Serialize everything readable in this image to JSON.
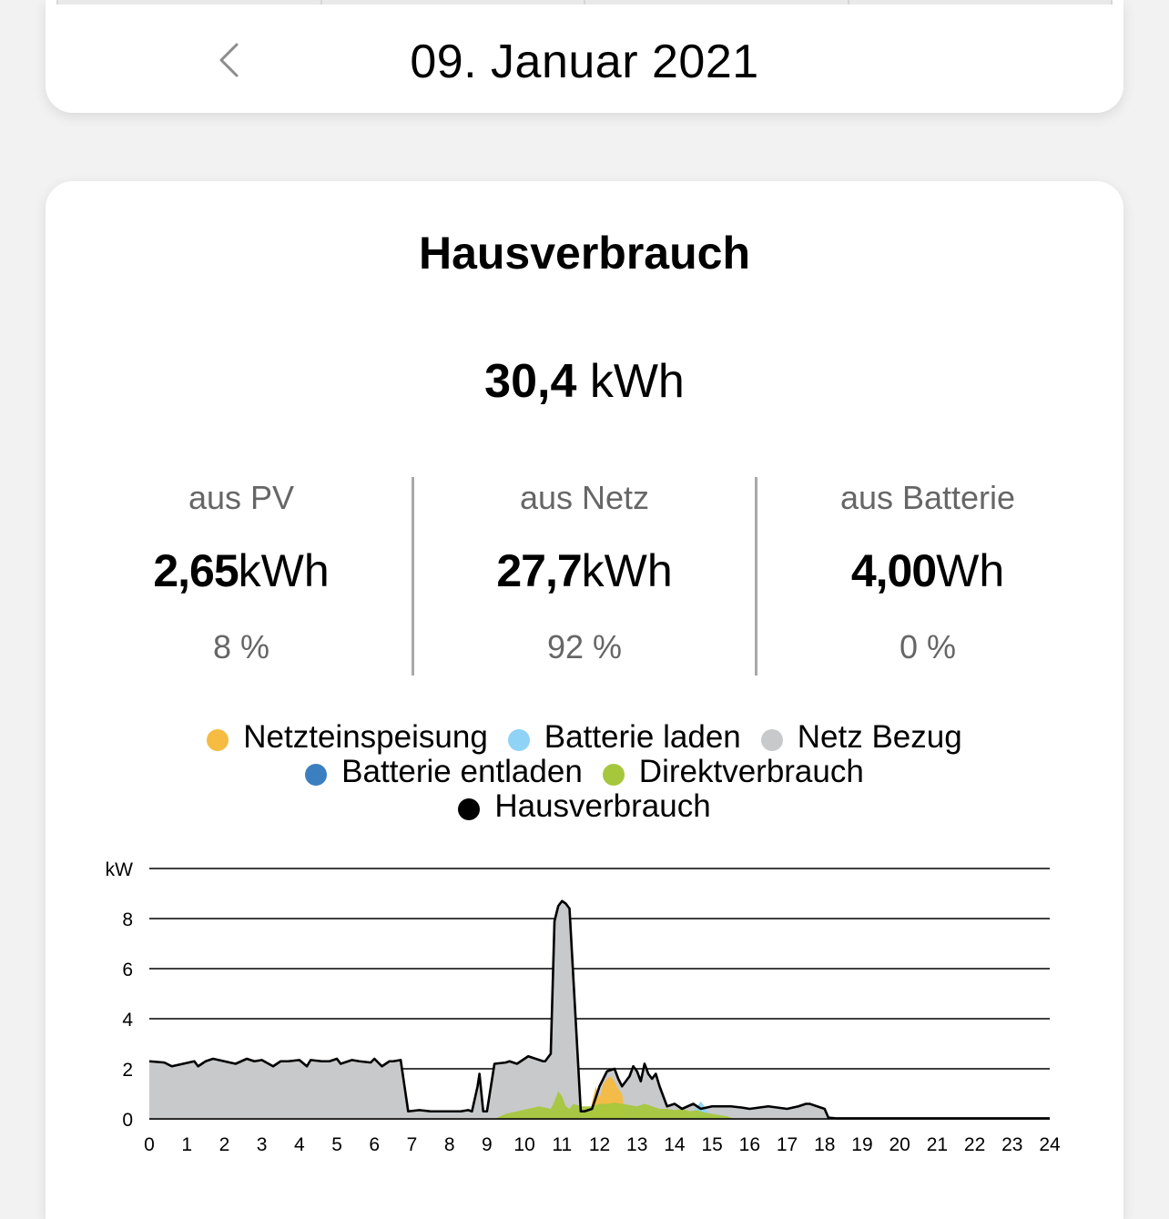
{
  "date_header": {
    "date": "09. Januar 2021",
    "prev_icon": "chevron-left-icon"
  },
  "card": {
    "title": "Hausverbrauch",
    "total_value": "30,4",
    "total_unit": "kWh",
    "stats": [
      {
        "label": "aus PV",
        "value": "2,65",
        "unit": "kWh",
        "percent": "8 %"
      },
      {
        "label": "aus Netz",
        "value": "27,7",
        "unit": "kWh",
        "percent": "92 %"
      },
      {
        "label": "aus Batterie",
        "value": "4,00",
        "unit": "Wh",
        "percent": "0 %"
      }
    ],
    "legend": [
      {
        "label": "Netzteinspeisung",
        "color": "#f5bc41"
      },
      {
        "label": "Batterie laden",
        "color": "#8fd3f6"
      },
      {
        "label": "Netz Bezug",
        "color": "#c8c9ca"
      },
      {
        "label": "Batterie entladen",
        "color": "#3c7fc0"
      },
      {
        "label": "Direktverbrauch",
        "color": "#a6c73c"
      },
      {
        "label": "Hausverbrauch",
        "color": "#000000"
      }
    ]
  },
  "chart_data": {
    "type": "area",
    "ylabel": "kW",
    "ylim": [
      0,
      10
    ],
    "yticks": [
      0,
      2,
      4,
      6,
      8
    ],
    "xlim": [
      0,
      24
    ],
    "xticks": [
      "0",
      "1",
      "2",
      "3",
      "4",
      "5",
      "6",
      "7",
      "8",
      "9",
      "10",
      "11",
      "12",
      "13",
      "14",
      "15",
      "16",
      "17",
      "18",
      "19",
      "20",
      "21",
      "22",
      "23",
      "24"
    ],
    "grid": true,
    "series": [
      {
        "name": "Hausverbrauch",
        "color": "#000000",
        "x": [
          0,
          0.4,
          0.6,
          1.2,
          1.3,
          1.5,
          1.7,
          2,
          2.3,
          2.6,
          2.8,
          3,
          3.3,
          3.5,
          3.7,
          4,
          4.2,
          4.3,
          4.6,
          4.8,
          5,
          5.1,
          5.4,
          5.6,
          5.9,
          6,
          6.2,
          6.4,
          6.5,
          6.7,
          6.9,
          7.2,
          7.5,
          7.8,
          8.1,
          8.3,
          8.5,
          8.6,
          8.75,
          8.8,
          8.9,
          9,
          9.2,
          9.5,
          9.6,
          9.8,
          10.1,
          10.5,
          10.55,
          10.6,
          10.7,
          10.8,
          10.9,
          11,
          11.1,
          11.15,
          11.2,
          11.5,
          11.6,
          11.7,
          11.8,
          12,
          12.1,
          12.2,
          12.4,
          12.5,
          12.6,
          12.8,
          12.9,
          13,
          13.1,
          13.2,
          13.3,
          13.4,
          13.5,
          13.6,
          13.8,
          14,
          14.2,
          14.5,
          14.7,
          15,
          15.2,
          15.5,
          15.8,
          16,
          16.5,
          17,
          17.3,
          17.5,
          17.6,
          17.8,
          18,
          18.1,
          18.3,
          24
        ],
        "y": [
          2.3,
          2.25,
          2.1,
          2.3,
          2.1,
          2.3,
          2.4,
          2.3,
          2.2,
          2.4,
          2.3,
          2.35,
          2.1,
          2.3,
          2.3,
          2.35,
          2.1,
          2.35,
          2.3,
          2.3,
          2.4,
          2.2,
          2.35,
          2.3,
          2.25,
          2.4,
          2.1,
          2.3,
          2.3,
          2.35,
          0.3,
          0.35,
          0.3,
          0.3,
          0.3,
          0.3,
          0.35,
          0.3,
          1.3,
          1.8,
          0.3,
          0.3,
          2.2,
          2.25,
          2.3,
          2.2,
          2.5,
          2.3,
          2.3,
          2.4,
          2.6,
          7.9,
          8.5,
          8.7,
          8.6,
          8.5,
          8.4,
          0.3,
          0.3,
          0.35,
          0.4,
          1.3,
          1.6,
          1.9,
          2,
          1.6,
          1.3,
          1.7,
          2.1,
          1.9,
          1.5,
          2.2,
          1.8,
          1.6,
          1.8,
          1.3,
          0.5,
          0.6,
          0.4,
          0.6,
          0.4,
          0.5,
          0.5,
          0.5,
          0.45,
          0.4,
          0.5,
          0.4,
          0.5,
          0.6,
          0.6,
          0.5,
          0.4,
          0.05,
          0.02,
          0.02
        ]
      },
      {
        "name": "Netzteinspeisung",
        "color": "#f5bc41",
        "x": [
          11.7,
          11.9,
          12,
          12.1,
          12.2,
          12.3,
          12.4,
          12.5,
          12.6,
          12.7
        ],
        "y": [
          0,
          1.3,
          0.8,
          1.4,
          1.6,
          1.7,
          1.5,
          1.2,
          1.0,
          0
        ]
      },
      {
        "name": "Batterie laden",
        "color": "#8fd3f6",
        "x": [
          14.4,
          14.6,
          14.7,
          14.8,
          15
        ],
        "y": [
          0,
          0.5,
          0.7,
          0.5,
          0
        ]
      },
      {
        "name": "Direktverbrauch",
        "color": "#a6c73c",
        "x": [
          9.2,
          9.5,
          9.8,
          10.1,
          10.4,
          10.7,
          10.8,
          10.9,
          11,
          11.1,
          11.2,
          11.3,
          11.5,
          11.8,
          12,
          12.2,
          12.4,
          12.6,
          12.8,
          13,
          13.2,
          13.4,
          13.6,
          13.8,
          14,
          14.2,
          14.4,
          14.6,
          14.8,
          15,
          15.2,
          15.4,
          15.6
        ],
        "y": [
          0,
          0.2,
          0.3,
          0.4,
          0.5,
          0.4,
          0.7,
          1.1,
          0.9,
          0.5,
          0.4,
          0.6,
          0.5,
          0.5,
          0.6,
          0.6,
          0.65,
          0.6,
          0.55,
          0.5,
          0.6,
          0.5,
          0.4,
          0.4,
          0.35,
          0.4,
          0.3,
          0.35,
          0.25,
          0.2,
          0.15,
          0.1,
          0
        ]
      }
    ]
  }
}
